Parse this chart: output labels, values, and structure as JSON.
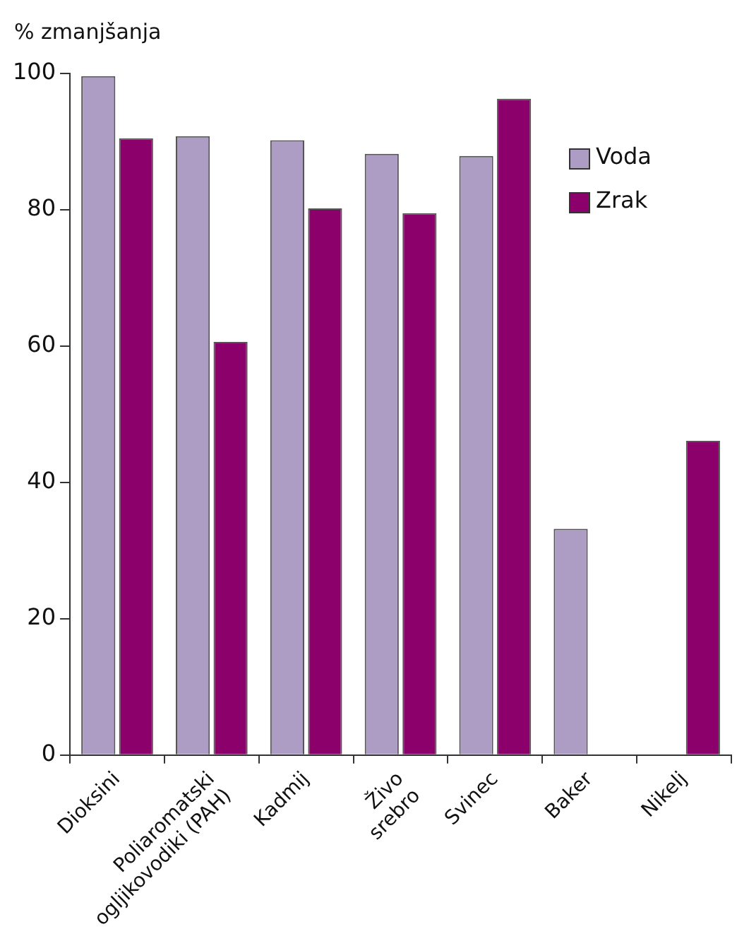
{
  "chart_data": {
    "type": "bar",
    "ylabel": "% zmanjšanja",
    "categories": [
      "Dioksini",
      "Poliaromatski\nogljikovodiki (PAH)",
      "Kadmij",
      "Živo\nsrebro",
      "Svinec",
      "Baker",
      "Nikelj"
    ],
    "series": [
      {
        "name": "Voda",
        "color": "#ad9cc4",
        "values": [
          99.6,
          90.8,
          90.2,
          88.2,
          87.9,
          33.2,
          null
        ]
      },
      {
        "name": "Zrak",
        "color": "#8c006b",
        "values": [
          90.5,
          60.6,
          80.2,
          79.5,
          96.3,
          null,
          46.1
        ]
      }
    ],
    "ylim": [
      0,
      100
    ],
    "yticks": [
      0,
      20,
      40,
      60,
      80,
      100
    ],
    "grid": false,
    "legend": "top right"
  }
}
